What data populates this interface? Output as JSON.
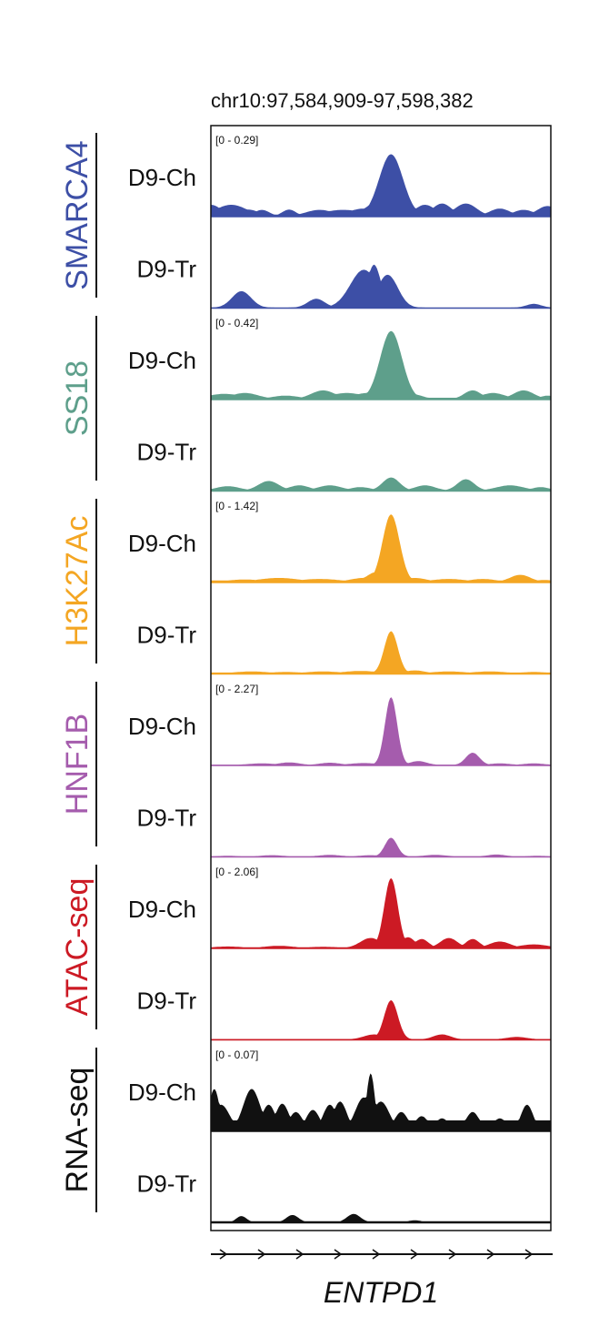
{
  "chart_data": {
    "type": "area",
    "title": "chr10:97,584,909-97,598,382",
    "gene": "ENTPD1",
    "x_domain": [
      0,
      1
    ],
    "groups": [
      {
        "name": "SMARCA4",
        "color": "#3d4fa6",
        "range": "[0 - 0.29]",
        "ylim": [
          0,
          0.29
        ],
        "tracks": [
          {
            "label": "D9-Ch",
            "peaks": [
              [
                0.0,
                0.045,
                0.03,
                0.006
              ],
              [
                0.06,
                0.045,
                0.045,
                0.006
              ],
              [
                0.11,
                0.026,
                0.032,
                0.006
              ],
              [
                0.15,
                0.025,
                0.022,
                0.006
              ],
              [
                0.23,
                0.026,
                0.02,
                0.006
              ],
              [
                0.32,
                0.025,
                0.04,
                0.006
              ],
              [
                0.39,
                0.025,
                0.06,
                0.006
              ],
              [
                0.45,
                0.03,
                0.045,
                0.006
              ],
              [
                0.53,
                0.245,
                0.035,
                0.006
              ],
              [
                0.49,
                0.055,
                0.035,
                0.006
              ],
              [
                0.63,
                0.045,
                0.03,
                0.006
              ],
              [
                0.68,
                0.05,
                0.028,
                0.006
              ],
              [
                0.75,
                0.05,
                0.032,
                0.006
              ],
              [
                0.85,
                0.03,
                0.03,
                0.006
              ],
              [
                0.92,
                0.025,
                0.03,
                0.006
              ],
              [
                0.99,
                0.04,
                0.03,
                0.006
              ]
            ]
          },
          {
            "label": "D9-Tr",
            "peaks": [
              [
                0.09,
                0.065,
                0.028,
                0.0
              ],
              [
                0.31,
                0.035,
                0.025,
                0.0
              ],
              [
                0.45,
                0.15,
                0.04,
                0.0
              ],
              [
                0.48,
                0.17,
                0.02,
                0.0
              ],
              [
                0.52,
                0.13,
                0.03,
                0.0
              ],
              [
                0.95,
                0.015,
                0.022,
                0.0
              ]
            ]
          }
        ]
      },
      {
        "name": "SS18",
        "color": "#5e9f8b",
        "range": "[0 - 0.42]",
        "ylim": [
          0,
          0.42
        ],
        "tracks": [
          {
            "label": "D9-Ch",
            "peaks": [
              [
                0.04,
                0.03,
                0.05,
                0.008
              ],
              [
                0.1,
                0.035,
                0.04,
                0.008
              ],
              [
                0.22,
                0.02,
                0.04,
                0.008
              ],
              [
                0.33,
                0.05,
                0.035,
                0.008
              ],
              [
                0.4,
                0.035,
                0.05,
                0.008
              ],
              [
                0.46,
                0.035,
                0.04,
                0.008
              ],
              [
                0.53,
                0.39,
                0.032,
                0.008
              ],
              [
                0.59,
                0.03,
                0.03,
                0.008
              ],
              [
                0.77,
                0.05,
                0.025,
                0.008
              ],
              [
                0.83,
                0.035,
                0.035,
                0.008
              ],
              [
                0.92,
                0.05,
                0.03,
                0.008
              ],
              [
                0.99,
                0.02,
                0.02,
                0.008
              ]
            ]
          },
          {
            "label": "D9-Tr",
            "peaks": [
              [
                0.05,
                0.025,
                0.035,
                0.004
              ],
              [
                0.17,
                0.055,
                0.03,
                0.004
              ],
              [
                0.26,
                0.03,
                0.03,
                0.004
              ],
              [
                0.35,
                0.03,
                0.035,
                0.004
              ],
              [
                0.44,
                0.02,
                0.03,
                0.004
              ],
              [
                0.53,
                0.075,
                0.025,
                0.004
              ],
              [
                0.63,
                0.03,
                0.03,
                0.004
              ],
              [
                0.75,
                0.065,
                0.025,
                0.004
              ],
              [
                0.88,
                0.03,
                0.04,
                0.004
              ],
              [
                0.97,
                0.02,
                0.025,
                0.004
              ]
            ]
          }
        ]
      },
      {
        "name": "H3K27Ac",
        "color": "#f4a623",
        "range": "[0 - 1.42]",
        "ylim": [
          0,
          1.42
        ],
        "tracks": [
          {
            "label": "D9-Ch",
            "peaks": [
              [
                0.1,
                0.05,
                0.05,
                0.03
              ],
              [
                0.2,
                0.08,
                0.06,
                0.03
              ],
              [
                0.32,
                0.06,
                0.06,
                0.03
              ],
              [
                0.45,
                0.08,
                0.04,
                0.03
              ],
              [
                0.49,
                0.2,
                0.03,
                0.03
              ],
              [
                0.53,
                1.31,
                0.025,
                0.03
              ],
              [
                0.6,
                0.08,
                0.035,
                0.03
              ],
              [
                0.7,
                0.06,
                0.05,
                0.03
              ],
              [
                0.8,
                0.06,
                0.04,
                0.03
              ],
              [
                0.91,
                0.14,
                0.03,
                0.03
              ],
              [
                0.98,
                0.04,
                0.03,
                0.03
              ]
            ]
          },
          {
            "label": "D9-Tr",
            "peaks": [
              [
                0.12,
                0.04,
                0.05,
                0.02
              ],
              [
                0.22,
                0.03,
                0.05,
                0.02
              ],
              [
                0.33,
                0.04,
                0.05,
                0.02
              ],
              [
                0.44,
                0.05,
                0.05,
                0.02
              ],
              [
                0.53,
                0.82,
                0.02,
                0.02
              ],
              [
                0.6,
                0.06,
                0.03,
                0.02
              ],
              [
                0.7,
                0.04,
                0.05,
                0.02
              ],
              [
                0.82,
                0.04,
                0.05,
                0.02
              ],
              [
                0.95,
                0.03,
                0.04,
                0.02
              ]
            ]
          }
        ]
      },
      {
        "name": "HNF1B",
        "color": "#a55cad",
        "range": "[0 - 2.27]",
        "ylim": [
          0,
          2.27
        ],
        "tracks": [
          {
            "label": "D9-Ch",
            "peaks": [
              [
                0.15,
                0.05,
                0.04,
                0.01
              ],
              [
                0.23,
                0.08,
                0.03,
                0.01
              ],
              [
                0.35,
                0.07,
                0.03,
                0.01
              ],
              [
                0.45,
                0.06,
                0.04,
                0.01
              ],
              [
                0.53,
                2.1,
                0.018,
                0.01
              ],
              [
                0.61,
                0.12,
                0.025,
                0.01
              ],
              [
                0.77,
                0.38,
                0.02,
                0.01
              ],
              [
                0.85,
                0.05,
                0.03,
                0.01
              ],
              [
                0.95,
                0.05,
                0.03,
                0.01
              ]
            ]
          },
          {
            "label": "D9-Tr",
            "peaks": [
              [
                0.05,
                0.02,
                0.03,
                0.006
              ],
              [
                0.18,
                0.04,
                0.03,
                0.006
              ],
              [
                0.35,
                0.05,
                0.03,
                0.006
              ],
              [
                0.47,
                0.04,
                0.03,
                0.006
              ],
              [
                0.53,
                0.58,
                0.018,
                0.006
              ],
              [
                0.66,
                0.05,
                0.03,
                0.006
              ],
              [
                0.84,
                0.06,
                0.025,
                0.006
              ],
              [
                0.96,
                0.02,
                0.03,
                0.006
              ]
            ]
          }
        ]
      },
      {
        "name": "ATAC-seq",
        "color": "#cc1a24",
        "range": "[0 - 2.06]",
        "ylim": [
          0,
          2.06
        ],
        "tracks": [
          {
            "label": "D9-Ch",
            "peaks": [
              [
                0.05,
                0.04,
                0.04,
                0.02
              ],
              [
                0.2,
                0.06,
                0.04,
                0.02
              ],
              [
                0.33,
                0.03,
                0.05,
                0.02
              ],
              [
                0.47,
                0.28,
                0.03,
                0.02
              ],
              [
                0.53,
                1.96,
                0.02,
                0.02
              ],
              [
                0.58,
                0.3,
                0.02,
                0.02
              ],
              [
                0.62,
                0.25,
                0.02,
                0.02
              ],
              [
                0.7,
                0.28,
                0.025,
                0.02
              ],
              [
                0.77,
                0.25,
                0.02,
                0.02
              ],
              [
                0.85,
                0.18,
                0.03,
                0.02
              ],
              [
                0.95,
                0.1,
                0.04,
                0.02
              ]
            ]
          },
          {
            "label": "D9-Tr",
            "peaks": [
              [
                0.48,
                0.14,
                0.03,
                0.01
              ],
              [
                0.53,
                1.1,
                0.02,
                0.01
              ],
              [
                0.68,
                0.14,
                0.025,
                0.01
              ],
              [
                0.9,
                0.07,
                0.03,
                0.01
              ]
            ]
          }
        ]
      },
      {
        "name": "RNA-seq",
        "color": "#111111",
        "range": "[0 - 0.07]",
        "ylim": [
          0,
          0.07
        ],
        "tracks": [
          {
            "label": "D9-Ch",
            "peaks": [
              [
                0.01,
                0.04,
                0.015,
                0.01
              ],
              [
                0.03,
                0.025,
                0.025,
                0.01
              ],
              [
                0.12,
                0.04,
                0.025,
                0.01
              ],
              [
                0.17,
                0.025,
                0.02,
                0.01
              ],
              [
                0.21,
                0.026,
                0.02,
                0.01
              ],
              [
                0.25,
                0.018,
                0.02,
                0.01
              ],
              [
                0.3,
                0.02,
                0.02,
                0.01
              ],
              [
                0.35,
                0.025,
                0.02,
                0.01
              ],
              [
                0.38,
                0.028,
                0.02,
                0.01
              ],
              [
                0.45,
                0.032,
                0.025,
                0.01
              ],
              [
                0.47,
                0.055,
                0.012,
                0.01
              ],
              [
                0.5,
                0.028,
                0.025,
                0.01
              ],
              [
                0.56,
                0.018,
                0.02,
                0.01
              ],
              [
                0.62,
                0.014,
                0.02,
                0.01
              ],
              [
                0.68,
                0.012,
                0.02,
                0.01
              ],
              [
                0.77,
                0.018,
                0.02,
                0.01
              ],
              [
                0.85,
                0.012,
                0.02,
                0.01
              ],
              [
                0.93,
                0.025,
                0.018,
                0.01
              ]
            ]
          },
          {
            "label": "D9-Tr",
            "peaks": [
              [
                0.09,
                0.006,
                0.015,
                0.001
              ],
              [
                0.24,
                0.007,
                0.018,
                0.001
              ],
              [
                0.42,
                0.008,
                0.02,
                0.001
              ],
              [
                0.6,
                0.002,
                0.02,
                0.001
              ]
            ]
          }
        ]
      }
    ]
  }
}
